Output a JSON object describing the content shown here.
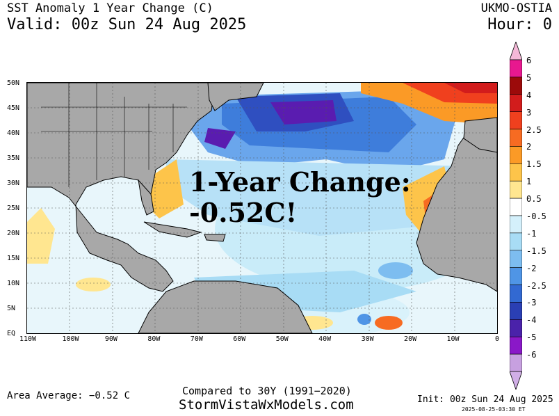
{
  "header": {
    "title": "SST Anomaly 1 Year Change (C)",
    "valid": "Valid: 00z Sun 24 Aug 2025",
    "model": "UKMO-OSTIA",
    "hour": "Hour: 0"
  },
  "map": {
    "lat_labels": [
      "50N",
      "45N",
      "40N",
      "35N",
      "30N",
      "25N",
      "20N",
      "15N",
      "10N",
      "5N",
      "EQ"
    ],
    "lon_labels": [
      "110W",
      "100W",
      "90W",
      "80W",
      "70W",
      "60W",
      "50W",
      "40W",
      "30W",
      "20W",
      "10W",
      "0"
    ],
    "overlay_line1": "1-Year Change:",
    "overlay_line2": "-0.52C!",
    "land_color": "#a8a8a8",
    "ocean_base_color": "#e8f6fb"
  },
  "colorbar": {
    "labels": [
      "6",
      "5",
      "4",
      "3",
      "2.5",
      "2",
      "1.5",
      "1",
      "0.5",
      "-0.5",
      "-1",
      "-1.5",
      "-2",
      "-2.5",
      "-3",
      "-4",
      "-5",
      "-6"
    ],
    "colors": [
      "#e8188f",
      "#9c0a0a",
      "#d21c1c",
      "#f0401e",
      "#f76b22",
      "#fb9a26",
      "#fdc44a",
      "#ffe690",
      "#ffffff",
      "#d4f0fb",
      "#a8dcf5",
      "#7dbdf0",
      "#4f95e6",
      "#3269d2",
      "#2a3fb4",
      "#4a22aa",
      "#8a18c8",
      "#c7a0e0"
    ]
  },
  "footer": {
    "area_average": "Area Average: −0.52 C",
    "compared": "Compared to 30Y (1991−2020)",
    "site": "StormVistaWxModels.com",
    "init": "Init: 00z Sun 24 Aug 2025",
    "timestamp": "2025-08-25-03:30 ET"
  }
}
